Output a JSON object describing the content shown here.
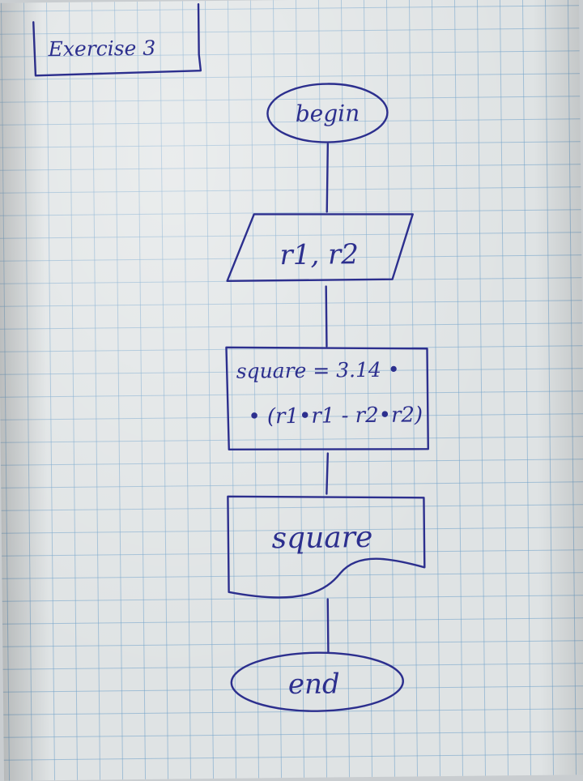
{
  "title": "Exercise 3",
  "flowchart": {
    "begin": "begin",
    "input": "r1,  r2",
    "process_line1": "square = 3.14 •",
    "process_line2": "• (r1•r1 - r2•r2)",
    "output": "square",
    "end": "end"
  },
  "colors": {
    "ink": "#2c2f8e",
    "grid": "#6ea0c8",
    "paper": "#dfe3e4"
  }
}
